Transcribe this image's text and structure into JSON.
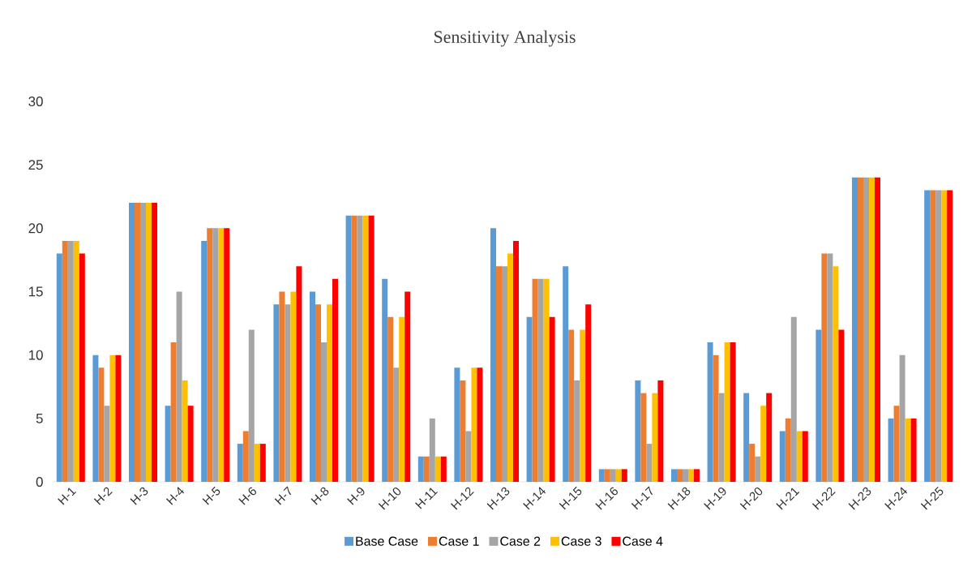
{
  "chart_data": {
    "type": "bar",
    "title": "Sensitivity Analysis",
    "categories": [
      "H-1",
      "H-2",
      "H-3",
      "H-4",
      "H-5",
      "H-6",
      "H-7",
      "H-8",
      "H-9",
      "H-10",
      "H-11",
      "H-12",
      "H-13",
      "H-14",
      "H-15",
      "H-16",
      "H-17",
      "H-18",
      "H-19",
      "H-20",
      "H-21",
      "H-22",
      "H-23",
      "H-24",
      "H-25"
    ],
    "series": [
      {
        "name": "Base Case",
        "color": "#5b9bd5",
        "values": [
          18,
          10,
          22,
          6,
          19,
          3,
          14,
          15,
          21,
          16,
          2,
          9,
          20,
          13,
          17,
          1,
          8,
          1,
          11,
          7,
          4,
          12,
          24,
          5,
          23
        ]
      },
      {
        "name": "Case 1",
        "color": "#ed7d31",
        "values": [
          19,
          9,
          22,
          11,
          20,
          4,
          15,
          14,
          21,
          13,
          2,
          8,
          17,
          16,
          12,
          1,
          7,
          1,
          10,
          3,
          5,
          18,
          24,
          6,
          23
        ]
      },
      {
        "name": "Case 2",
        "color": "#a5a5a5",
        "values": [
          19,
          6,
          22,
          15,
          20,
          12,
          14,
          11,
          21,
          9,
          5,
          4,
          17,
          16,
          8,
          1,
          3,
          1,
          7,
          2,
          13,
          18,
          24,
          10,
          23
        ]
      },
      {
        "name": "Case 3",
        "color": "#ffc000",
        "values": [
          19,
          10,
          22,
          8,
          20,
          3,
          15,
          14,
          21,
          13,
          2,
          9,
          18,
          16,
          12,
          1,
          7,
          1,
          11,
          6,
          4,
          17,
          24,
          5,
          23
        ]
      },
      {
        "name": "Case 4",
        "color": "#ff0000",
        "values": [
          18,
          10,
          22,
          6,
          20,
          3,
          17,
          16,
          21,
          15,
          2,
          9,
          19,
          13,
          14,
          1,
          8,
          1,
          11,
          7,
          4,
          12,
          24,
          5,
          23
        ]
      }
    ],
    "ylim": [
      0,
      30
    ],
    "yticks": [
      0,
      5,
      10,
      15,
      20,
      25,
      30
    ],
    "grid": false,
    "legend": "bottom"
  }
}
